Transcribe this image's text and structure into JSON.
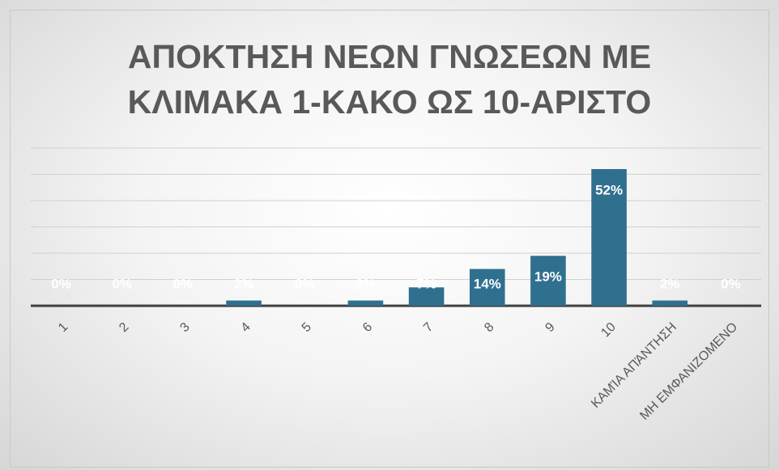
{
  "chart_data": {
    "type": "bar",
    "title": "ΑΠΟΚΤΗΣΗ ΝΕΩΝ ΓΝΩΣΕΩΝ ΜΕ ΚΛΙΜΑΚΑ 1-ΚΑΚΟ ΩΣ 10-ΑΡΙΣΤΟ",
    "categories": [
      "1",
      "2",
      "3",
      "4",
      "5",
      "6",
      "7",
      "8",
      "9",
      "10",
      "ΚΑΜΊΑ ΑΠΆΝΤΗΣΗ",
      "ΜΗ ΕΜΦΑΝΙΖΟΜΕΝΟ"
    ],
    "values": [
      0,
      0,
      0,
      2,
      0,
      2,
      7,
      14,
      19,
      52,
      2,
      0
    ],
    "value_labels": [
      "0%",
      "0%",
      "0%",
      "2%",
      "0%",
      "2%",
      "7%",
      "14%",
      "19%",
      "52%",
      "2%",
      "0%"
    ],
    "color": "#30708f",
    "ylim": [
      0,
      60
    ],
    "yticks": [
      0,
      10,
      20,
      30,
      40,
      50,
      60
    ],
    "grid": true
  }
}
